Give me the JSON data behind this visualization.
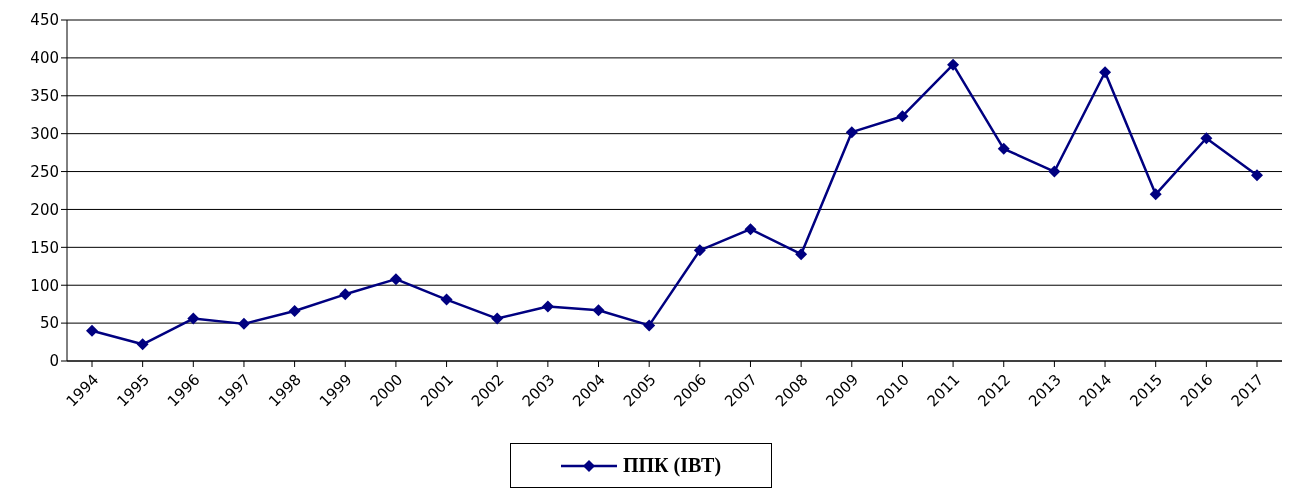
{
  "chart_data": {
    "type": "line",
    "categories": [
      "1994",
      "1995",
      "1996",
      "1997",
      "1998",
      "1999",
      "2000",
      "2001",
      "2002",
      "2003",
      "2004",
      "2005",
      "2006",
      "2007",
      "2008",
      "2009",
      "2010",
      "2011",
      "2012",
      "2013",
      "2014",
      "2015",
      "2016",
      "2017"
    ],
    "series": [
      {
        "name": "ППК (ІВТ)",
        "color": "#000080",
        "values": [
          40,
          22,
          56,
          49,
          66,
          88,
          108,
          81,
          56,
          72,
          67,
          47,
          146,
          174,
          141,
          302,
          323,
          391,
          280,
          250,
          381,
          220,
          294,
          245
        ]
      }
    ],
    "ylim": [
      0,
      450
    ],
    "yticks": [
      0,
      50,
      100,
      150,
      200,
      250,
      300,
      350,
      400,
      450
    ],
    "grid": "y",
    "legend": "bottom",
    "marker": "diamond",
    "line_style": "solid"
  }
}
